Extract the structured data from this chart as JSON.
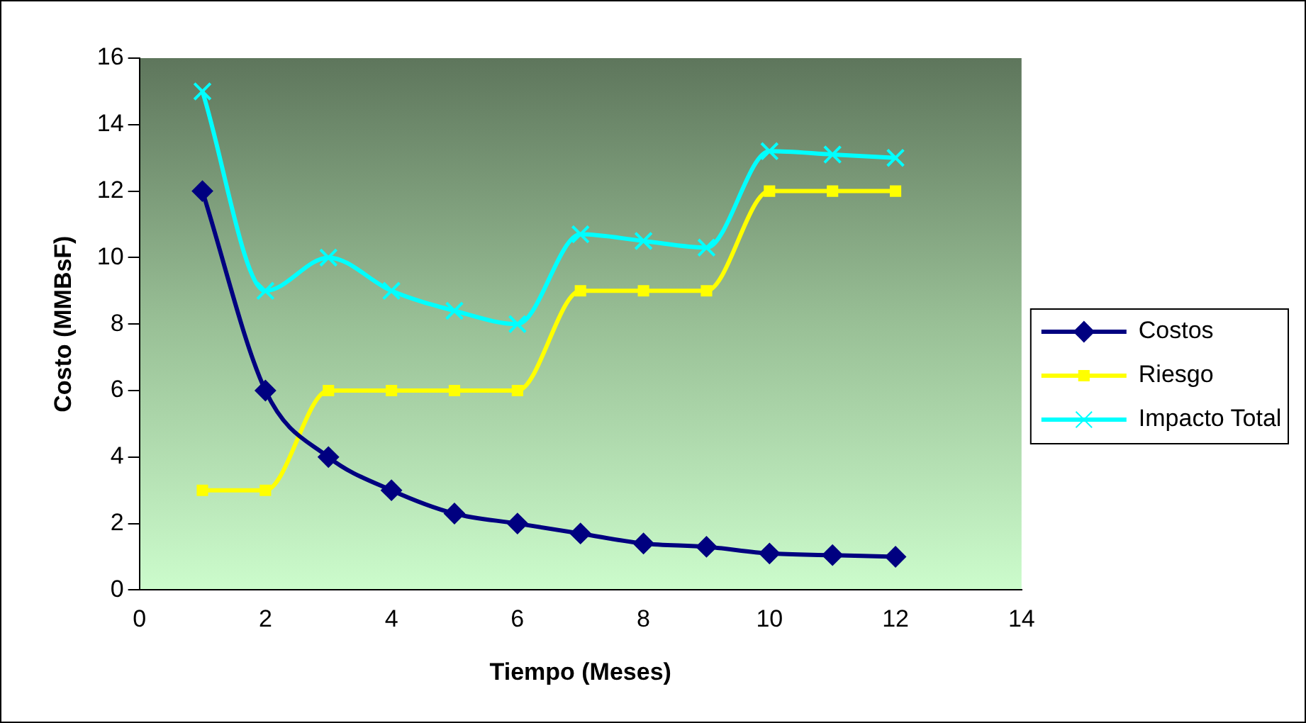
{
  "chart_data": {
    "type": "line",
    "xlabel": "Tiempo (Meses)",
    "ylabel": "Costo (MMBsF)",
    "x": [
      1,
      2,
      3,
      4,
      5,
      6,
      7,
      8,
      9,
      10,
      11,
      12
    ],
    "xlim": [
      0,
      14
    ],
    "xticks": [
      0,
      2,
      4,
      6,
      8,
      10,
      12,
      14
    ],
    "ylim": [
      0,
      16
    ],
    "yticks": [
      0,
      2,
      4,
      6,
      8,
      10,
      12,
      14,
      16
    ],
    "grid": false,
    "legend": "right",
    "series": [
      {
        "name": "Costos",
        "color": "#000080",
        "marker": "diamond",
        "values": [
          12,
          6,
          4,
          3,
          2.3,
          2,
          1.7,
          1.4,
          1.3,
          1.1,
          1.05,
          1
        ]
      },
      {
        "name": "Riesgo",
        "color": "#ffff00",
        "marker": "square",
        "values": [
          3,
          3,
          6,
          6,
          6,
          6,
          9,
          9,
          9,
          12,
          12,
          12
        ]
      },
      {
        "name": "Impacto Total",
        "color": "#00ffff",
        "marker": "cross",
        "values": [
          15,
          9,
          10,
          9,
          8.4,
          8,
          10.7,
          10.5,
          10.3,
          13.2,
          13.1,
          13
        ]
      }
    ]
  }
}
